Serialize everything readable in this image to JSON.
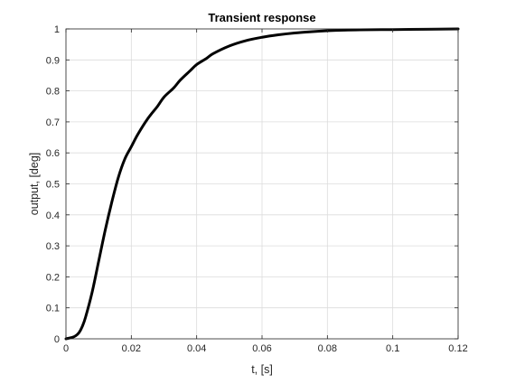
{
  "chart_data": {
    "type": "line",
    "title": "Transient response",
    "xlabel": "t, [s]",
    "ylabel": "output, [deg]",
    "xlim": [
      0,
      0.12
    ],
    "ylim": [
      0,
      1
    ],
    "grid": true,
    "x_ticks": [
      0,
      0.02,
      0.04,
      0.06,
      0.08,
      0.1,
      0.12
    ],
    "x_tick_labels": [
      "0",
      "0.02",
      "0.04",
      "0.06",
      "0.08",
      "0.1",
      "0.12"
    ],
    "y_ticks": [
      0,
      0.1,
      0.2,
      0.3,
      0.4,
      0.5,
      0.6,
      0.7,
      0.8,
      0.9,
      1
    ],
    "y_tick_labels": [
      "0",
      "0.1",
      "0.2",
      "0.3",
      "0.4",
      "0.5",
      "0.6",
      "0.7",
      "0.8",
      "0.9",
      "1"
    ],
    "line_color": "#000000",
    "series": [
      {
        "x": [
          0,
          0.002,
          0.003,
          0.004,
          0.005,
          0.006,
          0.008,
          0.01,
          0.012,
          0.014,
          0.016,
          0.018,
          0.02,
          0.022,
          0.025,
          0.028,
          0.03,
          0.033,
          0.035,
          0.038,
          0.04,
          0.043,
          0.045,
          0.05,
          0.055,
          0.06,
          0.065,
          0.07,
          0.075,
          0.08,
          0.085,
          0.09,
          0.1,
          0.11,
          0.12
        ],
        "y": [
          0,
          0.005,
          0.01,
          0.02,
          0.04,
          0.07,
          0.15,
          0.25,
          0.35,
          0.44,
          0.52,
          0.58,
          0.62,
          0.66,
          0.71,
          0.75,
          0.78,
          0.81,
          0.835,
          0.865,
          0.885,
          0.905,
          0.92,
          0.945,
          0.962,
          0.973,
          0.981,
          0.987,
          0.991,
          0.994,
          0.996,
          0.997,
          0.998,
          0.999,
          1.0
        ]
      }
    ]
  }
}
